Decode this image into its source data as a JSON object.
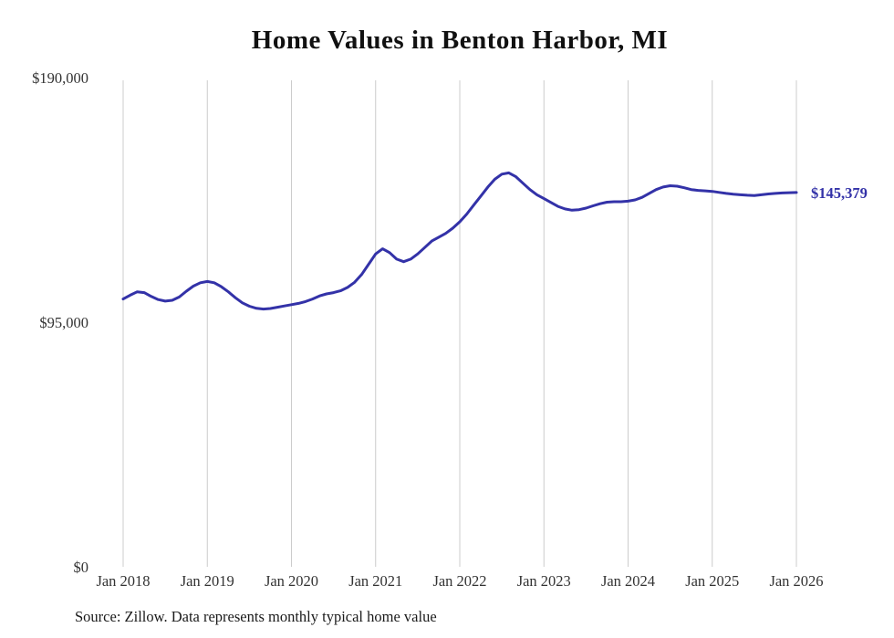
{
  "chart": {
    "source": "Source: Zillow. Data represents monthly typical home value",
    "colors": {
      "line": "#3332a8",
      "grid": "#cccccc",
      "tick": "#333333",
      "title": "#111111",
      "source": "#1a1a1a"
    }
  },
  "chart_data": {
    "type": "line",
    "title": "Home Values in Benton Harbor, MI",
    "frequency": "monthly",
    "x_start": "Jan 2018",
    "x_end": "Jan 2026",
    "x_tick_labels": [
      "Jan 2018",
      "Jan 2019",
      "Jan 2020",
      "Jan 2021",
      "Jan 2022",
      "Jan 2023",
      "Jan 2024",
      "Jan 2025",
      "Jan 2026"
    ],
    "y_ticks": [
      {
        "value": 0,
        "label": "$0"
      },
      {
        "value": 95000,
        "label": "$95,000"
      },
      {
        "value": 190000,
        "label": "$190,000"
      }
    ],
    "ylim": [
      0,
      190000
    ],
    "grid": "vertical-only",
    "legend_position": "none",
    "end_label": "$145,379",
    "end_value": 145379,
    "series": [
      {
        "name": "Typical home value",
        "values": [
          104000,
          105500,
          106800,
          106500,
          105000,
          103800,
          103200,
          103500,
          104800,
          107000,
          109000,
          110300,
          110800,
          110300,
          108800,
          106800,
          104500,
          102500,
          101200,
          100400,
          100100,
          100300,
          100800,
          101300,
          101800,
          102300,
          103000,
          104000,
          105200,
          106000,
          106500,
          107200,
          108500,
          110500,
          113500,
          117500,
          121500,
          123500,
          122000,
          119500,
          118500,
          119500,
          121500,
          124000,
          126500,
          128000,
          129500,
          131500,
          134000,
          137000,
          140500,
          144000,
          147500,
          150500,
          152500,
          153000,
          151500,
          149000,
          146500,
          144500,
          143000,
          141500,
          140000,
          139000,
          138500,
          138700,
          139300,
          140200,
          141000,
          141600,
          141800,
          141800,
          142000,
          142500,
          143500,
          145000,
          146500,
          147500,
          148000,
          147800,
          147200,
          146500,
          146200,
          146000,
          145800,
          145400,
          145000,
          144700,
          144500,
          144300,
          144200,
          144500,
          144800,
          145000,
          145200,
          145300,
          145379
        ]
      }
    ]
  }
}
